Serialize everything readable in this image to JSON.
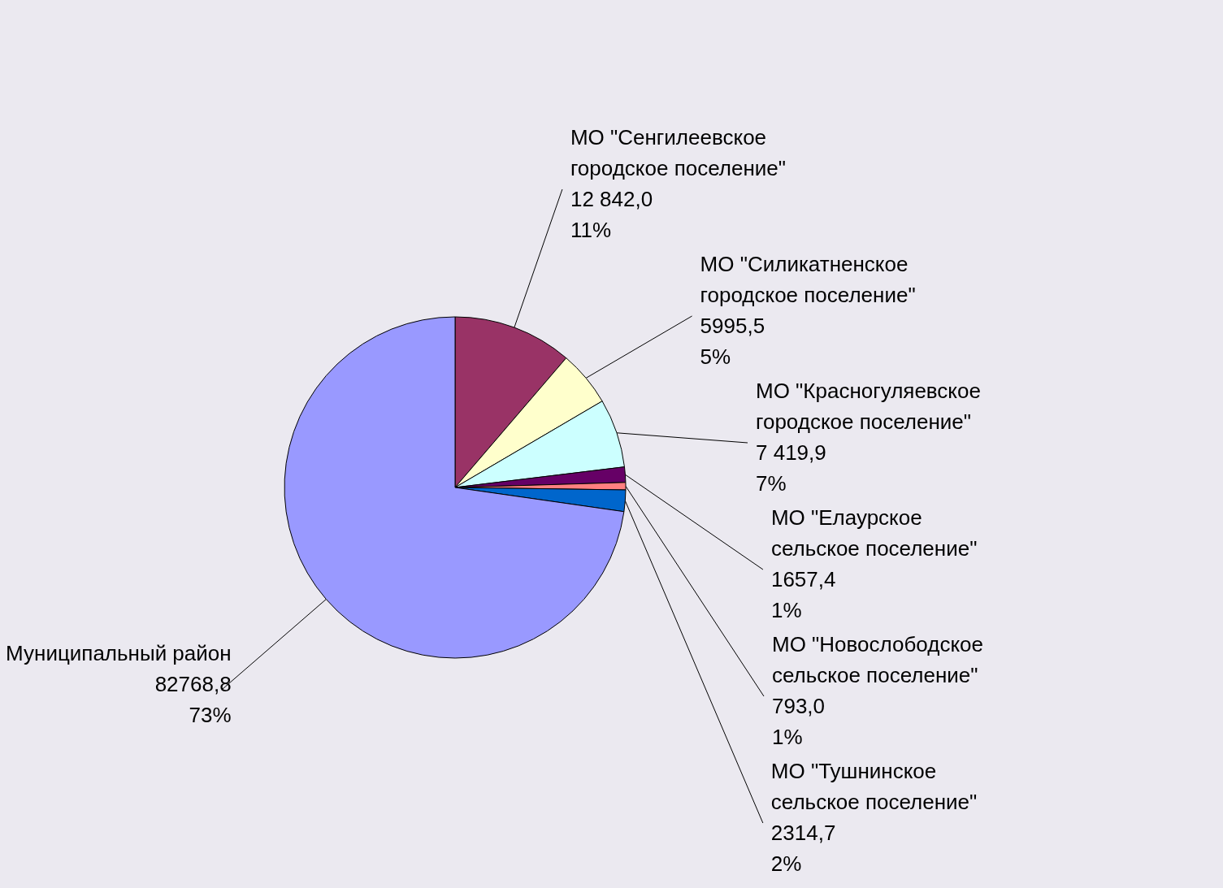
{
  "chart_data": {
    "type": "pie",
    "categories": [
      "МО \"Сенгилеевское городское поселение\"",
      "МО \"Силикатненское городское поселение\"",
      "МО \"Красногуляевское городское поселение\"",
      "МО \"Елаурское сельское поселение\"",
      "МО \"Новослободское сельское поселение\"",
      "МО \"Тушнинское сельское поселение\"",
      "Муниципальный район"
    ],
    "values": [
      12842.0,
      5995.5,
      7419.9,
      1657.4,
      793.0,
      2314.7,
      82768.8
    ],
    "value_labels": [
      "12 842,0\n11%",
      "5995,5\n5%",
      "7 419,9\n7%",
      "1657,4\n1%",
      "793,0\n1%",
      "2314,7\n2%",
      "82768,8\n73%"
    ],
    "colors": [
      "#993366",
      "#ffffcc",
      "#ccffff",
      "#660066",
      "#ff8080",
      "#0066cc",
      "#9999ff"
    ]
  }
}
